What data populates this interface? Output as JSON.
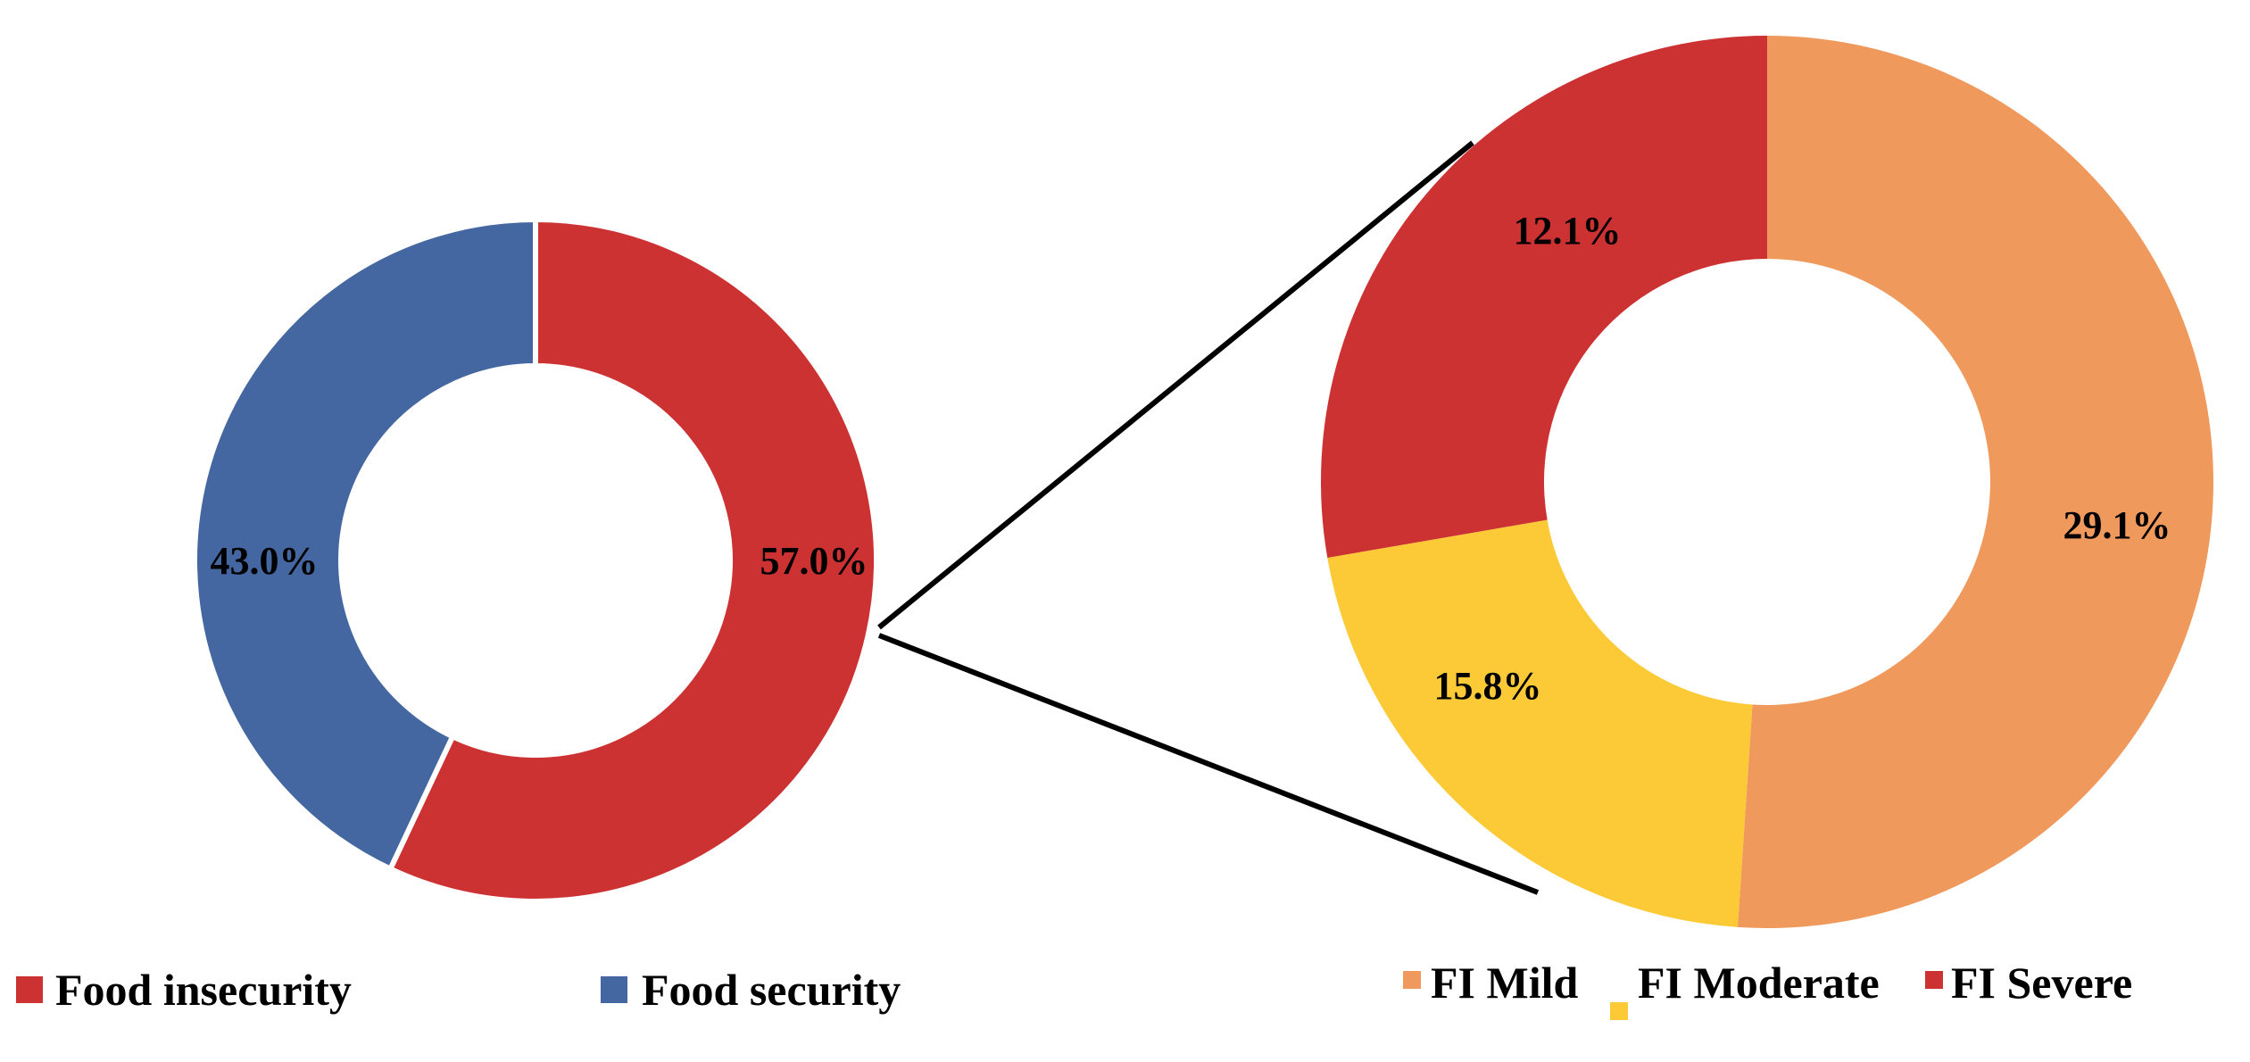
{
  "chart_data": [
    {
      "type": "donut",
      "categories": [
        "Food insecurity",
        "Food security"
      ],
      "values": [
        57.0,
        43.0
      ],
      "labels": [
        "57.0%",
        "43.0%"
      ],
      "colors": [
        "#cd3233",
        "#4567a1"
      ],
      "title": "",
      "legend": "bottom"
    },
    {
      "type": "donut",
      "categories": [
        "FI Mild",
        "FI Moderate",
        "FI Severe"
      ],
      "values": [
        29.1,
        12.1,
        15.8
      ],
      "labels": [
        "29.1%",
        "12.1%",
        "15.8%"
      ],
      "colors": [
        "#f0995c",
        "#fdca37",
        "#cd3233"
      ],
      "title": "",
      "legend": "bottom",
      "note": "breakdown of food insecurity"
    }
  ]
}
